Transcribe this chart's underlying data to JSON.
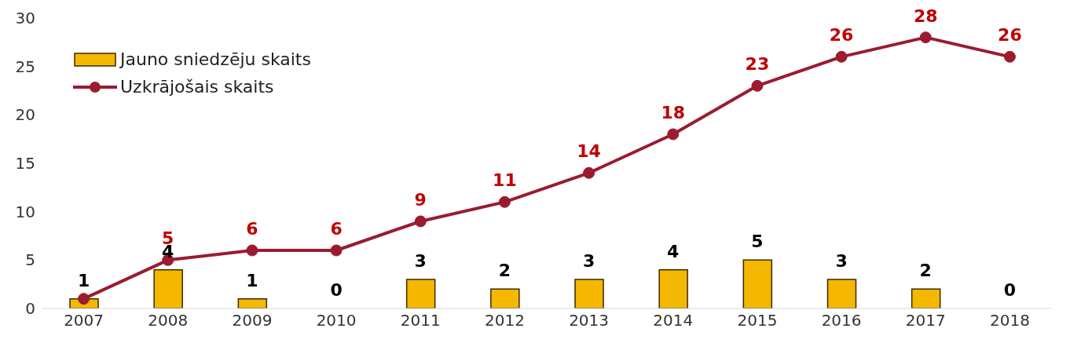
{
  "chart_data": {
    "type": "bar",
    "categories": [
      "2007",
      "2008",
      "2009",
      "2010",
      "2011",
      "2012",
      "2013",
      "2014",
      "2015",
      "2016",
      "2017",
      "2018"
    ],
    "series": [
      {
        "name": "Jauno sniedzēju skaits",
        "color": "#f5b800",
        "values": [
          1,
          4,
          1,
          0,
          3,
          2,
          3,
          4,
          5,
          3,
          2,
          0
        ],
        "value_labels": [
          "1",
          "4",
          "1",
          "0",
          "3",
          "2",
          "3",
          "4",
          "5",
          "3",
          "2",
          "0"
        ]
      },
      {
        "name": "Uzkrājošais skaits",
        "type": "line",
        "color": "#9b1b30",
        "values": [
          1,
          5,
          6,
          6,
          9,
          11,
          14,
          18,
          23,
          26,
          28,
          26
        ],
        "value_labels": [
          null,
          "5",
          "6",
          "6",
          "9",
          "11",
          "14",
          "18",
          "23",
          "26",
          "28",
          "26"
        ]
      }
    ],
    "ylim": [
      0,
      30
    ],
    "yticks": [
      0,
      5,
      10,
      15,
      20,
      25,
      30
    ],
    "legend": "top left",
    "marker": "circle",
    "line_style": "solid"
  }
}
